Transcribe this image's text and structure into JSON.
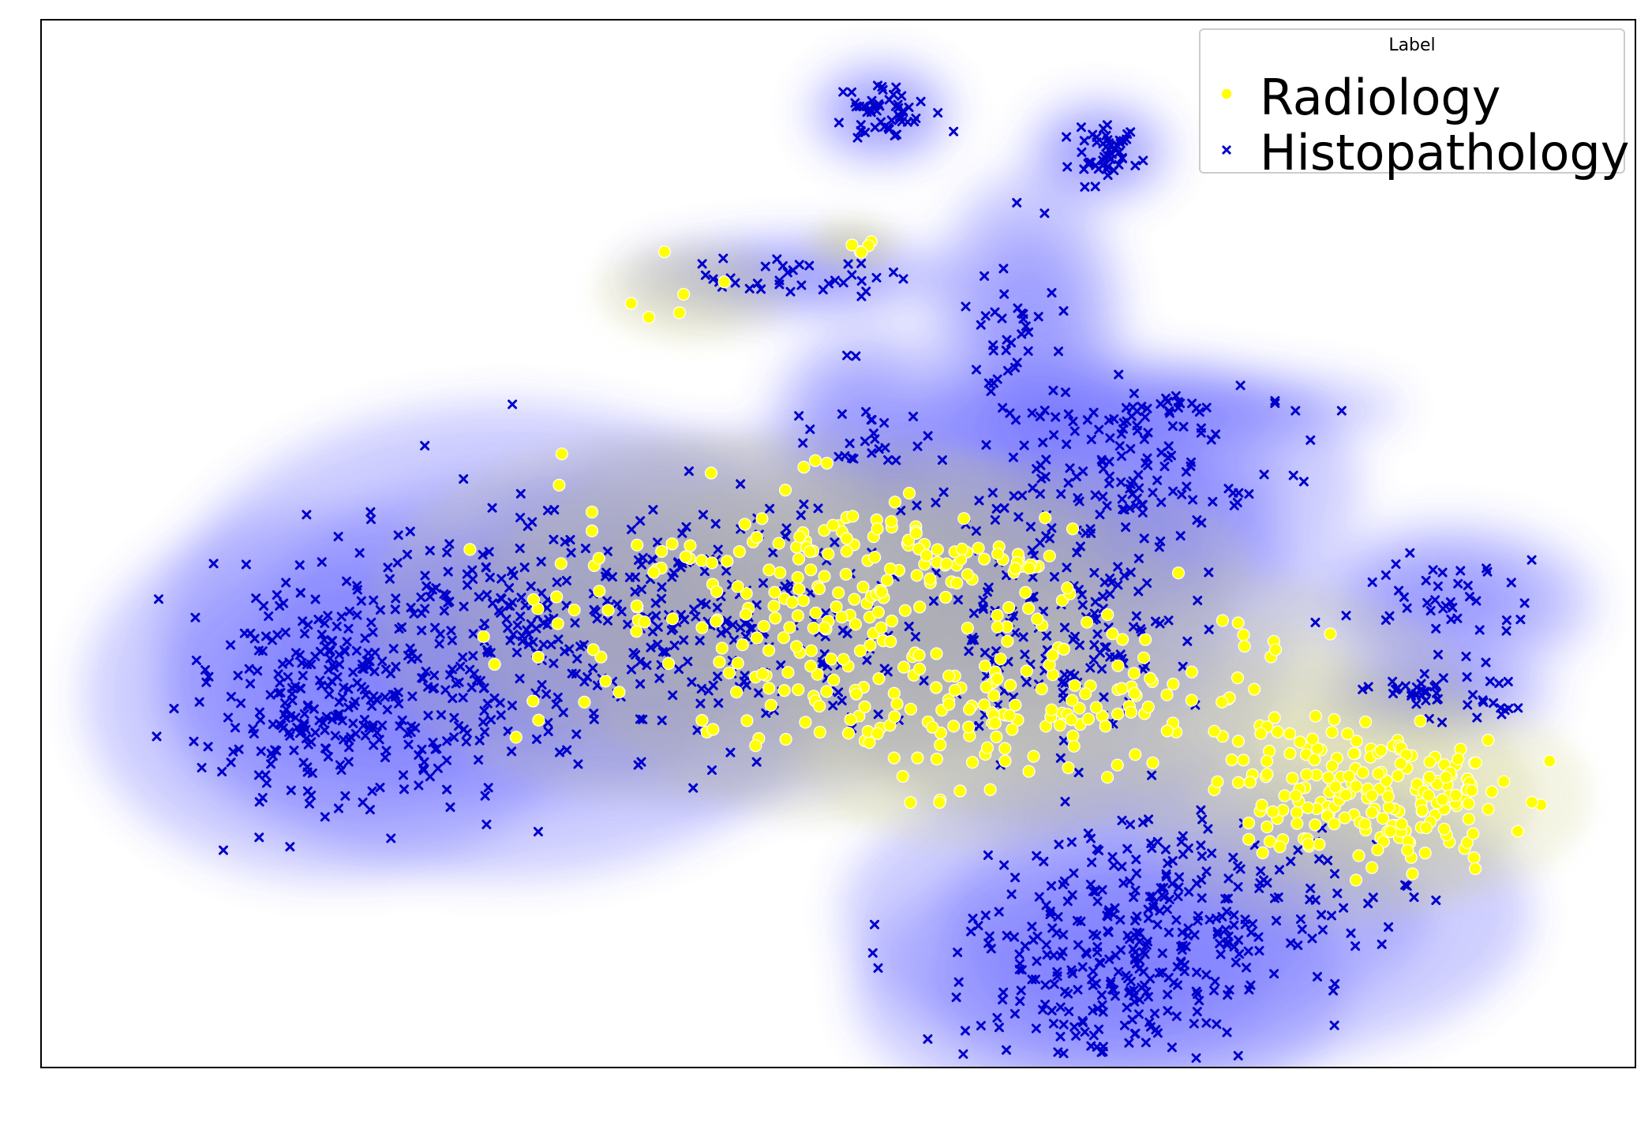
{
  "chart_data": {
    "type": "scatter",
    "title": "",
    "xlabel": "",
    "ylabel": "",
    "grid": false,
    "axis_ticks": false,
    "density_contours": true,
    "legend": {
      "title": "Label",
      "placement": "top-right"
    },
    "series": [
      {
        "name": "Radiology",
        "marker": "circle",
        "color": "#ffff00",
        "density_color": "#c8c87a",
        "clusters": [
          {
            "cx": 0.4,
            "cy": 0.18,
            "sx": 0.05,
            "sy": 0.06,
            "n": 70
          },
          {
            "cx": 0.6,
            "cy": 0.22,
            "sx": 0.07,
            "sy": 0.05,
            "n": 90
          },
          {
            "cx": 0.74,
            "cy": 0.35,
            "sx": 0.04,
            "sy": 0.05,
            "n": 110
          },
          {
            "cx": 0.8,
            "cy": 0.35,
            "sx": 0.035,
            "sy": 0.04,
            "n": 90
          },
          {
            "cx": 0.38,
            "cy": 0.05,
            "sx": 0.06,
            "sy": 0.05,
            "n": 70
          },
          {
            "cx": 0.48,
            "cy": 0.05,
            "sx": 0.06,
            "sy": 0.04,
            "n": 60
          },
          {
            "cx": 0.28,
            "cy": 0.12,
            "sx": 0.06,
            "sy": 0.07,
            "n": 60
          },
          {
            "cx": 0.5,
            "cy": 0.25,
            "sx": 0.04,
            "sy": 0.05,
            "n": 50
          },
          {
            "cx": 0.3,
            "cy": -0.3,
            "sx": 0.02,
            "sy": 0.02,
            "n": 6
          },
          {
            "cx": 0.41,
            "cy": -0.36,
            "sx": 0.01,
            "sy": 0.01,
            "n": 5
          }
        ]
      },
      {
        "name": "Histopathology",
        "marker": "x",
        "color": "#0000cc",
        "density_color": "#6666ff",
        "clusters": [
          {
            "cx": 0.05,
            "cy": 0.22,
            "sx": 0.05,
            "sy": 0.07,
            "n": 260
          },
          {
            "cx": 0.17,
            "cy": 0.15,
            "sx": 0.07,
            "sy": 0.09,
            "n": 260
          },
          {
            "cx": 0.33,
            "cy": 0.12,
            "sx": 0.06,
            "sy": 0.07,
            "n": 170
          },
          {
            "cx": 0.55,
            "cy": 0.12,
            "sx": 0.05,
            "sy": 0.08,
            "n": 160
          },
          {
            "cx": 0.64,
            "cy": 0.5,
            "sx": 0.07,
            "sy": 0.06,
            "n": 240
          },
          {
            "cx": 0.58,
            "cy": 0.6,
            "sx": 0.05,
            "sy": 0.05,
            "n": 140
          },
          {
            "cx": 0.59,
            "cy": -0.05,
            "sx": 0.05,
            "sy": 0.05,
            "n": 120
          },
          {
            "cx": 0.43,
            "cy": -0.53,
            "sx": 0.015,
            "sy": 0.02,
            "n": 50
          },
          {
            "cx": 0.58,
            "cy": -0.48,
            "sx": 0.015,
            "sy": 0.02,
            "n": 50
          },
          {
            "cx": 0.37,
            "cy": -0.32,
            "sx": 0.035,
            "sy": 0.015,
            "n": 35
          },
          {
            "cx": 0.53,
            "cy": -0.25,
            "sx": 0.02,
            "sy": 0.06,
            "n": 35
          },
          {
            "cx": 0.62,
            "cy": -0.15,
            "sx": 0.05,
            "sy": 0.015,
            "n": 40
          },
          {
            "cx": 0.81,
            "cy": 0.22,
            "sx": 0.025,
            "sy": 0.015,
            "n": 45
          },
          {
            "cx": 0.82,
            "cy": 0.1,
            "sx": 0.03,
            "sy": 0.03,
            "n": 40
          },
          {
            "cx": 0.42,
            "cy": -0.12,
            "sx": 0.02,
            "sy": 0.04,
            "n": 25
          }
        ]
      }
    ],
    "xlim": [
      -0.15,
      0.95
    ],
    "ylim": [
      0.7,
      -0.65
    ]
  }
}
